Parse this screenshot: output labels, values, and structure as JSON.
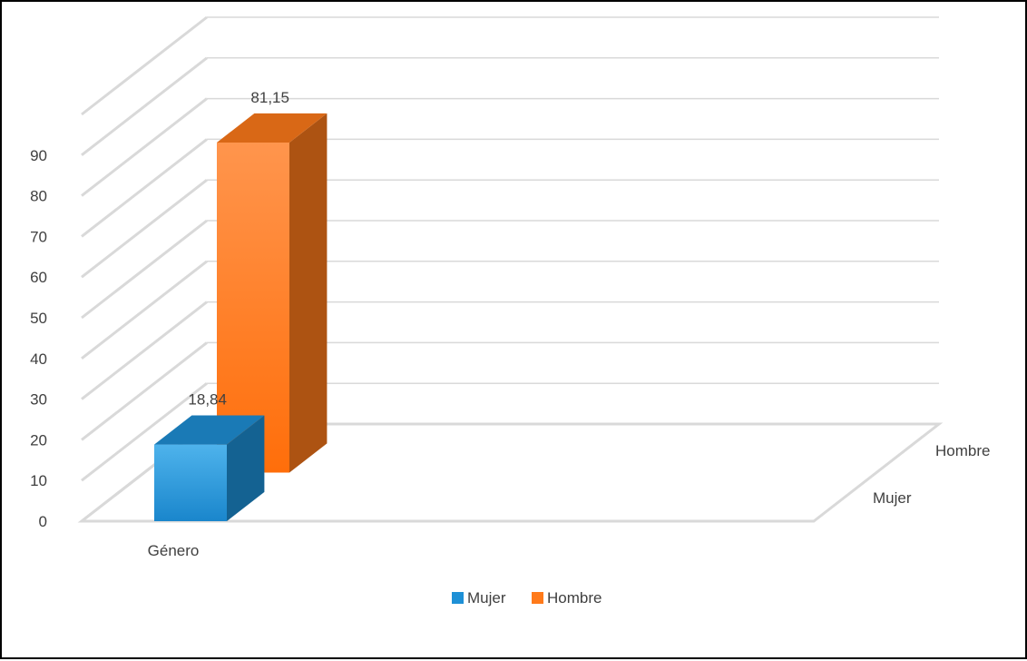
{
  "chart_data": {
    "type": "bar",
    "categories": [
      "Género"
    ],
    "series": [
      {
        "name": "Mujer",
        "values": [
          18.84
        ],
        "data_label": "18,84",
        "color": "#1e90d6"
      },
      {
        "name": "Hombre",
        "values": [
          81.15
        ],
        "data_label": "81,15",
        "color": "#ff7a1a"
      }
    ],
    "ylim": [
      0,
      90
    ],
    "yticks": [
      "0",
      "10",
      "20",
      "30",
      "40",
      "50",
      "60",
      "70",
      "80",
      "90"
    ],
    "series_axis": [
      "Mujer",
      "Hombre"
    ],
    "grid": true,
    "legend_position": "bottom",
    "style": "3d-column"
  }
}
